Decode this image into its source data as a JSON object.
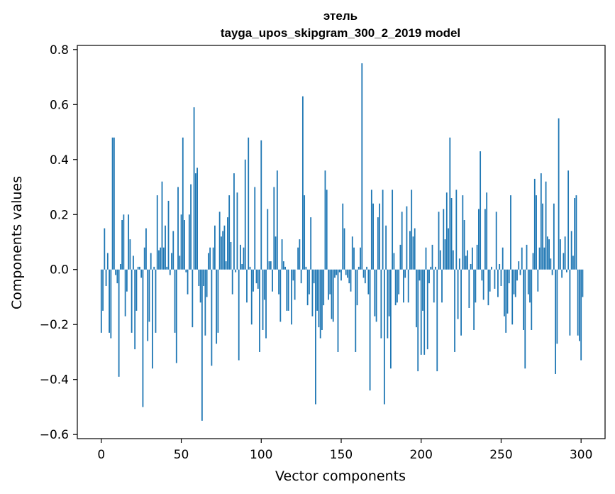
{
  "chart_data": {
    "type": "bar",
    "title": "этель",
    "subtitle": "tayga_upos_skipgram_300_2_2019 model",
    "xlabel": "Vector components",
    "ylabel": "Components values",
    "xlim": [
      -15,
      315
    ],
    "ylim": [
      -0.615,
      0.815
    ],
    "xticks": [
      0,
      50,
      100,
      150,
      200,
      250,
      300
    ],
    "xtick_labels": [
      "0",
      "50",
      "100",
      "150",
      "200",
      "250",
      "300"
    ],
    "yticks": [
      -0.6,
      -0.4,
      -0.2,
      0.0,
      0.2,
      0.4,
      0.6,
      0.8
    ],
    "ytick_labels": [
      "−0.6",
      "−0.4",
      "−0.2",
      "0.0",
      "0.2",
      "0.4",
      "0.6",
      "0.8"
    ],
    "bar_color": "#1f77b4",
    "values": [
      -0.23,
      -0.15,
      0.15,
      -0.06,
      0.06,
      -0.23,
      -0.25,
      0.48,
      0.48,
      -0.02,
      -0.05,
      -0.39,
      0.02,
      0.18,
      0.2,
      -0.17,
      -0.08,
      0.2,
      0.11,
      -0.23,
      0.05,
      -0.29,
      -0.15,
      0.01,
      0.01,
      -0.03,
      -0.5,
      0.08,
      0.15,
      -0.26,
      -0.19,
      0.06,
      -0.36,
      0.01,
      -0.23,
      0.27,
      0.07,
      0.08,
      0.32,
      0.08,
      0.16,
      0.01,
      0.25,
      -0.02,
      0.06,
      0.14,
      -0.23,
      -0.34,
      0.3,
      0.05,
      0.2,
      0.48,
      0.18,
      -0.01,
      -0.09,
      0.2,
      0.31,
      -0.21,
      0.59,
      0.35,
      0.37,
      -0.06,
      -0.12,
      -0.55,
      -0.06,
      -0.24,
      -0.1,
      0.06,
      0.08,
      -0.35,
      0.08,
      0.16,
      -0.27,
      -0.23,
      0.21,
      0.12,
      0.14,
      0.16,
      0.03,
      0.19,
      0.27,
      0.1,
      -0.09,
      0.35,
      -0.01,
      0.28,
      -0.33,
      0.09,
      0.02,
      0.08,
      0.4,
      -0.12,
      0.48,
      0.01,
      -0.2,
      -0.08,
      0.3,
      -0.05,
      -0.07,
      -0.3,
      0.47,
      -0.22,
      -0.11,
      -0.25,
      0.22,
      0.03,
      0.03,
      -0.08,
      0.3,
      0.12,
      0.36,
      -0.09,
      -0.19,
      0.11,
      0.03,
      0.01,
      -0.15,
      -0.15,
      0.0,
      -0.2,
      -0.04,
      -0.11,
      0.0,
      0.08,
      0.11,
      -0.05,
      0.63,
      0.27,
      0.01,
      -0.13,
      -0.09,
      0.19,
      -0.17,
      -0.05,
      -0.49,
      -0.15,
      -0.21,
      -0.25,
      -0.22,
      -0.13,
      0.36,
      0.29,
      -0.11,
      -0.09,
      -0.18,
      -0.19,
      -0.03,
      -0.02,
      -0.3,
      -0.01,
      -0.04,
      0.24,
      0.15,
      -0.02,
      -0.03,
      -0.05,
      -0.08,
      0.12,
      0.08,
      -0.3,
      -0.13,
      0.01,
      0.08,
      0.75,
      -0.03,
      -0.05,
      0.01,
      -0.09,
      -0.44,
      0.29,
      0.24,
      -0.17,
      -0.19,
      0.19,
      0.24,
      -0.25,
      0.29,
      -0.49,
      0.16,
      -0.25,
      -0.17,
      -0.36,
      0.29,
      0.06,
      -0.13,
      -0.12,
      -0.09,
      0.09,
      0.21,
      -0.12,
      -0.03,
      0.23,
      -0.12,
      0.14,
      0.29,
      0.12,
      0.15,
      -0.21,
      -0.37,
      -0.04,
      -0.31,
      -0.15,
      -0.31,
      0.08,
      -0.29,
      -0.05,
      0.01,
      0.09,
      -0.12,
      0.01,
      -0.37,
      0.21,
      0.07,
      -0.12,
      0.22,
      0.11,
      0.28,
      0.15,
      0.48,
      0.26,
      0.07,
      -0.3,
      0.29,
      -0.18,
      0.04,
      -0.24,
      0.27,
      0.18,
      0.05,
      0.07,
      -0.14,
      0.02,
      0.08,
      -0.22,
      -0.12,
      0.09,
      0.22,
      0.43,
      -0.04,
      -0.11,
      0.22,
      0.28,
      -0.13,
      -0.08,
      0.01,
      0.0,
      -0.07,
      0.21,
      -0.1,
      0.02,
      -0.06,
      0.08,
      -0.17,
      -0.23,
      -0.16,
      -0.05,
      0.27,
      -0.2,
      -0.09,
      -0.1,
      -0.04,
      0.03,
      -0.02,
      0.08,
      -0.22,
      -0.36,
      0.09,
      -0.09,
      -0.12,
      -0.22,
      0.06,
      0.33,
      0.27,
      -0.08,
      0.08,
      0.35,
      0.24,
      0.08,
      0.32,
      0.12,
      0.11,
      0.04,
      -0.02,
      0.24,
      -0.38,
      -0.27,
      0.55,
      0.11,
      -0.03,
      0.06,
      0.12,
      -0.01,
      0.36,
      -0.24,
      0.14,
      0.05,
      0.26,
      0.27,
      -0.24,
      -0.26,
      -0.33,
      -0.1
    ]
  }
}
